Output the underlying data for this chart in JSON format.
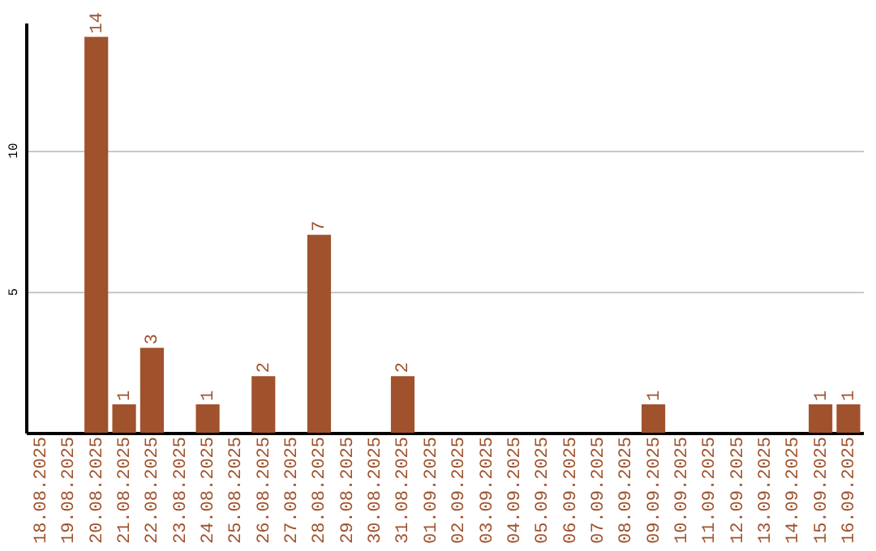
{
  "chart_data": {
    "type": "bar",
    "categories": [
      "18.08.2025",
      "19.08.2025",
      "20.08.2025",
      "21.08.2025",
      "22.08.2025",
      "23.08.2025",
      "24.08.2025",
      "25.08.2025",
      "26.08.2025",
      "27.08.2025",
      "28.08.2025",
      "29.08.2025",
      "30.08.2025",
      "31.08.2025",
      "01.09.2025",
      "02.09.2025",
      "03.09.2025",
      "04.09.2025",
      "05.09.2025",
      "06.09.2025",
      "07.09.2025",
      "08.09.2025",
      "09.09.2025",
      "10.09.2025",
      "11.09.2025",
      "12.09.2025",
      "13.09.2025",
      "14.09.2025",
      "15.09.2025",
      "16.09.2025"
    ],
    "values": [
      0,
      0,
      14,
      1,
      3,
      0,
      1,
      0,
      2,
      0,
      7,
      0,
      0,
      2,
      0,
      0,
      0,
      0,
      0,
      0,
      0,
      0,
      1,
      0,
      0,
      0,
      0,
      0,
      1,
      1
    ],
    "value_labels": [
      null,
      null,
      "14",
      "1",
      "3",
      null,
      "1",
      null,
      "2",
      null,
      "7",
      null,
      null,
      "2",
      null,
      null,
      null,
      null,
      null,
      null,
      null,
      null,
      "1",
      null,
      null,
      null,
      null,
      null,
      "1",
      "1"
    ],
    "color": "#a0522d",
    "ylim": [
      0,
      14.5
    ],
    "yticks": [
      5,
      10
    ],
    "grid": "y"
  }
}
